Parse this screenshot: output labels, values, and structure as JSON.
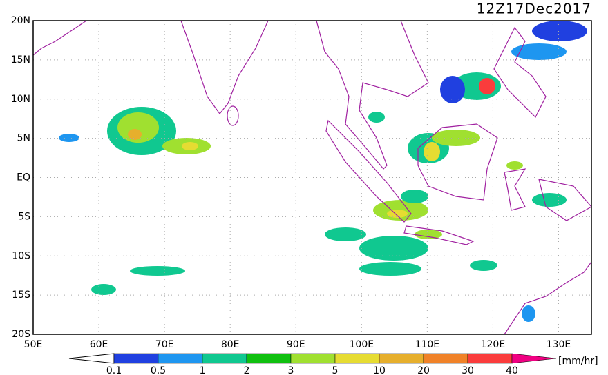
{
  "title": "12Z17Dec2017",
  "x_axis": {
    "labels": [
      "50E",
      "60E",
      "70E",
      "80E",
      "90E",
      "100E",
      "110E",
      "120E",
      "130E"
    ]
  },
  "y_axis": {
    "labels": [
      "20N",
      "15N",
      "10N",
      "5N",
      "EQ",
      "5S",
      "10S",
      "15S",
      "20S"
    ]
  },
  "colorbar": {
    "levels": [
      "0.1",
      "0.5",
      "1",
      "2",
      "3",
      "5",
      "10",
      "20",
      "30",
      "40"
    ],
    "colors": [
      "#ffffff",
      "#2040e0",
      "#1e96f0",
      "#10c890",
      "#10c010",
      "#a0e030",
      "#e6dc32",
      "#e6af2d",
      "#f08228",
      "#fa3c3c",
      "#f00082"
    ],
    "unit": "[mm/hr]"
  }
}
